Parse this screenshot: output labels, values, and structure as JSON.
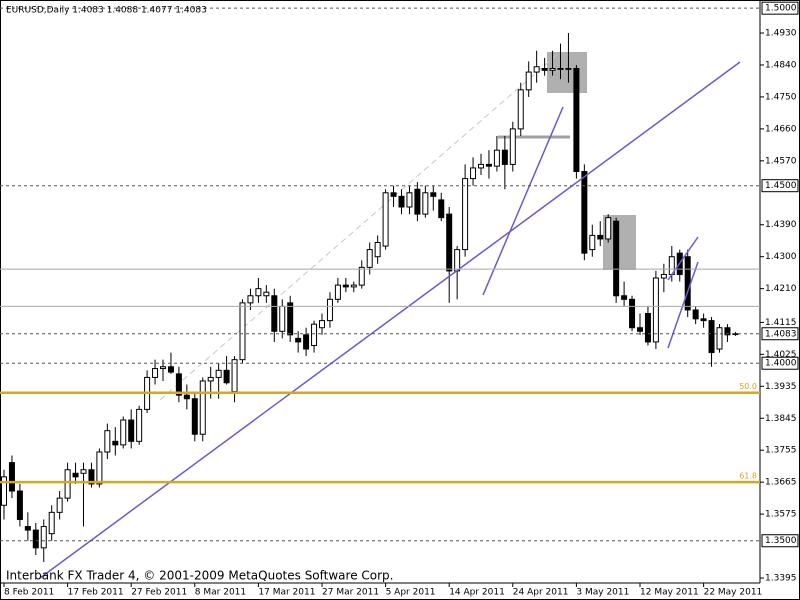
{
  "chart_data": {
    "type": "candlestick",
    "title": "EURUSD,Daily  1.4083 1.4088 1.4077 1.4083",
    "footer": "Interbank FX Trader 4, © 2001-2009 MetaQuotes Software Corp.",
    "ylim": [
      1.3381,
      1.5023
    ],
    "yticks": [
      {
        "value": 1.493,
        "label": "1.4930"
      },
      {
        "value": 1.484,
        "label": "1.4840"
      },
      {
        "value": 1.475,
        "label": "1.4750"
      },
      {
        "value": 1.466,
        "label": "1.4660"
      },
      {
        "value": 1.457,
        "label": "1.4570"
      },
      {
        "value": 1.439,
        "label": "1.4390"
      },
      {
        "value": 1.43,
        "label": "1.4300"
      },
      {
        "value": 1.421,
        "label": "1.4210"
      },
      1.4115,
      1.4025,
      1.3935,
      1.3845,
      1.3755,
      1.3665,
      1.3575,
      1.3395
    ],
    "levels": [
      {
        "value": 1.5,
        "label": "1.5000"
      },
      {
        "value": 1.45,
        "label": "1.4500"
      },
      {
        "value": 1.4083,
        "label": "1.4083"
      },
      {
        "value": 1.4,
        "label": "1.4000"
      },
      {
        "value": 1.35,
        "label": "1.3500"
      }
    ],
    "support_lines": [
      1.4265,
      1.416
    ],
    "fib_levels": [
      {
        "label": "50.0",
        "value": 1.3917
      },
      {
        "label": "61.8",
        "value": 1.3665
      }
    ],
    "fib_color": "#daa520",
    "date_labels": [
      "8 Feb 2011",
      "17 Feb 2011",
      "27 Feb 2011",
      "8 Mar 2011",
      "17 Mar 2011",
      "27 Mar 2011",
      "5 Apr 2011",
      "14 Apr 2011",
      "24 Apr 2011",
      "3 May 2011",
      "12 May 2011",
      "22 May 2011"
    ],
    "candles": [
      [
        1.36,
        1.37,
        1.356,
        1.368
      ],
      [
        1.372,
        1.374,
        1.362,
        1.364
      ],
      [
        1.364,
        1.366,
        1.354,
        1.356
      ],
      [
        1.354,
        1.358,
        1.35,
        1.353
      ],
      [
        1.353,
        1.355,
        1.346,
        1.348
      ],
      [
        1.348,
        1.356,
        1.344,
        1.354
      ],
      [
        1.352,
        1.36,
        1.35,
        1.358
      ],
      [
        1.358,
        1.364,
        1.356,
        1.362
      ],
      [
        1.362,
        1.372,
        1.361,
        1.37
      ],
      [
        1.369,
        1.372,
        1.366,
        1.368
      ],
      [
        1.369,
        1.372,
        1.354,
        1.37
      ],
      [
        1.37,
        1.372,
        1.365,
        1.366
      ],
      [
        1.366,
        1.376,
        1.365,
        1.375
      ],
      [
        1.375,
        1.383,
        1.373,
        1.381
      ],
      [
        1.378,
        1.382,
        1.374,
        1.377
      ],
      [
        1.377,
        1.385,
        1.376,
        1.384
      ],
      [
        1.384,
        1.387,
        1.376,
        1.378
      ],
      [
        1.378,
        1.388,
        1.377,
        1.387
      ],
      [
        1.387,
        1.398,
        1.386,
        1.396
      ],
      [
        1.396,
        1.401,
        1.394,
        1.3985
      ],
      [
        1.3985,
        1.401,
        1.395,
        1.399
      ],
      [
        1.399,
        1.403,
        1.397,
        1.3975
      ],
      [
        1.397,
        1.399,
        1.389,
        1.391
      ],
      [
        1.391,
        1.394,
        1.387,
        1.39
      ],
      [
        1.39,
        1.392,
        1.378,
        1.38
      ],
      [
        1.38,
        1.396,
        1.378,
        1.395
      ],
      [
        1.395,
        1.399,
        1.39,
        1.396
      ],
      [
        1.396,
        1.4,
        1.39,
        1.398
      ],
      [
        1.398,
        1.402,
        1.394,
        1.3945
      ],
      [
        1.392,
        1.402,
        1.389,
        1.401
      ],
      [
        1.401,
        1.418,
        1.4,
        1.417
      ],
      [
        1.417,
        1.421,
        1.415,
        1.419
      ],
      [
        1.419,
        1.424,
        1.417,
        1.421
      ],
      [
        1.419,
        1.422,
        1.417,
        1.42
      ],
      [
        1.419,
        1.421,
        1.406,
        1.409
      ],
      [
        1.409,
        1.418,
        1.407,
        1.416
      ],
      [
        1.417,
        1.419,
        1.406,
        1.408
      ],
      [
        1.407,
        1.409,
        1.403,
        1.406
      ],
      [
        1.408,
        1.41,
        1.402,
        1.404
      ],
      [
        1.405,
        1.412,
        1.403,
        1.411
      ],
      [
        1.41,
        1.414,
        1.408,
        1.412
      ],
      [
        1.412,
        1.42,
        1.41,
        1.418
      ],
      [
        1.418,
        1.424,
        1.417,
        1.422
      ],
      [
        1.422,
        1.424,
        1.42,
        1.4215
      ],
      [
        1.4215,
        1.423,
        1.42,
        1.422
      ],
      [
        1.422,
        1.429,
        1.421,
        1.427
      ],
      [
        1.427,
        1.434,
        1.425,
        1.432
      ],
      [
        1.43,
        1.436,
        1.428,
        1.434
      ],
      [
        1.433,
        1.449,
        1.432,
        1.448
      ],
      [
        1.448,
        1.45,
        1.444,
        1.447
      ],
      [
        1.447,
        1.449,
        1.442,
        1.444
      ],
      [
        1.444,
        1.45,
        1.442,
        1.448
      ],
      [
        1.449,
        1.451,
        1.44,
        1.442
      ],
      [
        1.442,
        1.45,
        1.441,
        1.448
      ],
      [
        1.448,
        1.45,
        1.443,
        1.447
      ],
      [
        1.446,
        1.448,
        1.44,
        1.441
      ],
      [
        1.442,
        1.444,
        1.417,
        1.426
      ],
      [
        1.426,
        1.433,
        1.418,
        1.432
      ],
      [
        1.432,
        1.456,
        1.43,
        1.452
      ],
      [
        1.452,
        1.458,
        1.45,
        1.455
      ],
      [
        1.455,
        1.459,
        1.453,
        1.456
      ],
      [
        1.456,
        1.46,
        1.452,
        1.4555
      ],
      [
        1.4555,
        1.464,
        1.454,
        1.46
      ],
      [
        1.46,
        1.464,
        1.449,
        1.456
      ],
      [
        1.456,
        1.468,
        1.454,
        1.466
      ],
      [
        1.466,
        1.479,
        1.464,
        1.477
      ],
      [
        1.477,
        1.485,
        1.475,
        1.482
      ],
      [
        1.482,
        1.488,
        1.479,
        1.4835
      ],
      [
        1.483,
        1.486,
        1.481,
        1.4825
      ],
      [
        1.4825,
        1.488,
        1.481,
        1.483
      ],
      [
        1.483,
        1.49,
        1.48,
        1.4828
      ],
      [
        1.4828,
        1.493,
        1.479,
        1.483
      ],
      [
        1.483,
        1.484,
        1.452,
        1.454
      ],
      [
        1.454,
        1.456,
        1.429,
        1.431
      ],
      [
        1.432,
        1.439,
        1.43,
        1.436
      ],
      [
        1.436,
        1.44,
        1.433,
        1.435
      ],
      [
        1.435,
        1.442,
        1.434,
        1.441
      ],
      [
        1.44,
        1.441,
        1.417,
        1.419
      ],
      [
        1.419,
        1.423,
        1.416,
        1.418
      ],
      [
        1.418,
        1.419,
        1.409,
        1.41
      ],
      [
        1.41,
        1.414,
        1.408,
        1.409
      ],
      [
        1.414,
        1.416,
        1.405,
        1.406
      ],
      [
        1.406,
        1.426,
        1.404,
        1.424
      ],
      [
        1.424,
        1.428,
        1.42,
        1.425
      ],
      [
        1.425,
        1.433,
        1.423,
        1.43
      ],
      [
        1.431,
        1.432,
        1.423,
        1.425
      ],
      [
        1.43,
        1.432,
        1.413,
        1.415
      ],
      [
        1.415,
        1.416,
        1.411,
        1.4125
      ],
      [
        1.4125,
        1.414,
        1.41,
        1.412
      ],
      [
        1.412,
        1.413,
        1.399,
        1.403
      ],
      [
        1.404,
        1.411,
        1.403,
        1.41
      ],
      [
        1.41,
        1.411,
        1.406,
        1.408
      ],
      [
        1.4083,
        1.4088,
        1.4077,
        1.4083
      ]
    ],
    "up_color": "#ffffff",
    "down_color": "#000000",
    "trend_color": "#6a5acd"
  }
}
